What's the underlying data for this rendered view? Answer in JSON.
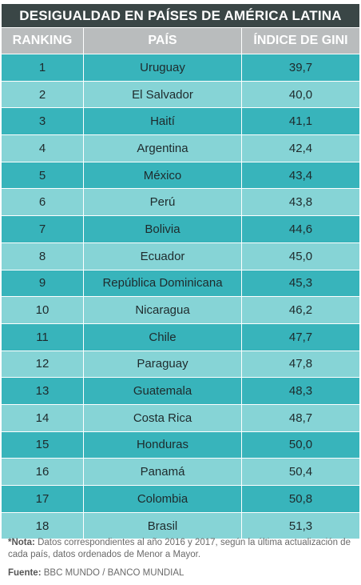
{
  "title": "DESIGUALDAD EN PAÍSES DE AMÉRICA LATINA",
  "headers": [
    "RANKING",
    "PAÍS",
    "ÍNDICE DE GINI"
  ],
  "rows": [
    [
      "1",
      "Uruguay",
      "39,7"
    ],
    [
      "2",
      "El Salvador",
      "40,0"
    ],
    [
      "3",
      "Haití",
      "41,1"
    ],
    [
      "4",
      "Argentina",
      "42,4"
    ],
    [
      "5",
      "México",
      "43,4"
    ],
    [
      "6",
      "Perú",
      "43,8"
    ],
    [
      "7",
      "Bolivia",
      "44,6"
    ],
    [
      "8",
      "Ecuador",
      "45,0"
    ],
    [
      "9",
      "República Dominicana",
      "45,3"
    ],
    [
      "10",
      "Nicaragua",
      "46,2"
    ],
    [
      "11",
      "Chile",
      "47,7"
    ],
    [
      "12",
      "Paraguay",
      "47,8"
    ],
    [
      "13",
      "Guatemala",
      "48,3"
    ],
    [
      "14",
      "Costa Rica",
      "48,7"
    ],
    [
      "15",
      "Honduras",
      "50,0"
    ],
    [
      "16",
      "Panamá",
      "50,4"
    ],
    [
      "17",
      "Colombia",
      "50,8"
    ],
    [
      "18",
      "Brasil",
      "51,3"
    ]
  ],
  "note": {
    "label": "*Nota:",
    "text": " Datos correspondientes al año 2016 y 2017, según la última actualización de cada país, datos ordenados de Menor a Mayor."
  },
  "source": {
    "label": "Fuente:",
    "text": " BBC MUNDO / BANCO MUNDIAL"
  },
  "colors": {
    "title_bg": "#3a4646",
    "header_bg": "#b9bcbd",
    "row_dark": "#38b4bb",
    "row_light": "#86d4d6"
  },
  "chart_data": {
    "type": "table",
    "title": "DESIGUALDAD EN PAÍSES DE AMÉRICA LATINA",
    "columns": [
      "RANKING",
      "PAÍS",
      "ÍNDICE DE GINI"
    ],
    "rows": [
      [
        1,
        "Uruguay",
        39.7
      ],
      [
        2,
        "El Salvador",
        40.0
      ],
      [
        3,
        "Haití",
        41.1
      ],
      [
        4,
        "Argentina",
        42.4
      ],
      [
        5,
        "México",
        43.4
      ],
      [
        6,
        "Perú",
        43.8
      ],
      [
        7,
        "Bolivia",
        44.6
      ],
      [
        8,
        "Ecuador",
        45.0
      ],
      [
        9,
        "República Dominicana",
        45.3
      ],
      [
        10,
        "Nicaragua",
        46.2
      ],
      [
        11,
        "Chile",
        47.7
      ],
      [
        12,
        "Paraguay",
        47.8
      ],
      [
        13,
        "Guatemala",
        48.3
      ],
      [
        14,
        "Costa Rica",
        48.7
      ],
      [
        15,
        "Honduras",
        50.0
      ],
      [
        16,
        "Panamá",
        50.4
      ],
      [
        17,
        "Colombia",
        50.8
      ],
      [
        18,
        "Brasil",
        51.3
      ]
    ]
  }
}
